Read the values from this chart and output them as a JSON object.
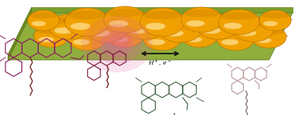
{
  "bg_color": "#ffffff",
  "platform_color_top": "#8fae3c",
  "platform_color_side": "#6b8a20",
  "platform_color_front": "#7a9e2e",
  "nanoparticle_color": "#f0a000",
  "nanoparticle_dark": "#c07800",
  "nanoparticle_highlight": "#ffd060",
  "nanoparticle_highlight2": "#ffe090",
  "pink_color": "#e060a0",
  "pink_glow_alpha": 0.45,
  "mol_left_color": "#8b2060",
  "mol_near_color": "#7a1840",
  "mol_top_color": "#3a6040",
  "mol_right_color": "#b09090",
  "linker_left_color": "#6a1010",
  "linker_right_color": "#706060",
  "arrow_color": "#111111",
  "arrow_text": "H$^+$, e$^-$"
}
